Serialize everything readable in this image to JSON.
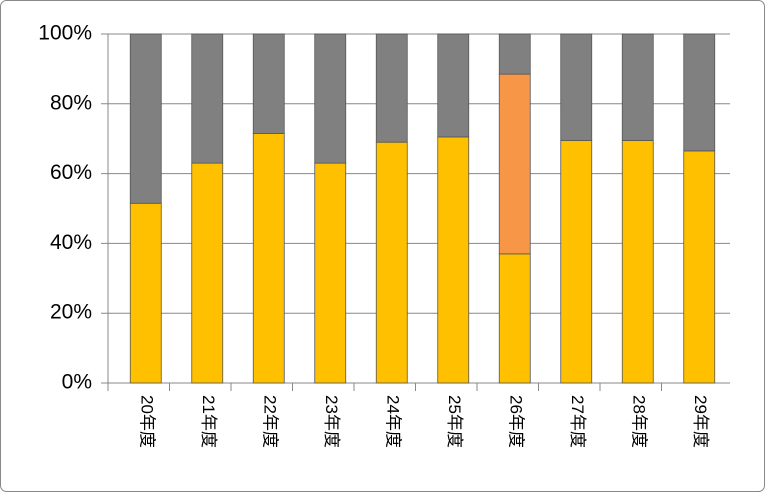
{
  "chart_data": {
    "type": "stacked_bar",
    "categories": [
      "20年度",
      "21年度",
      "22年度",
      "23年度",
      "24年度",
      "25年度",
      "26年度",
      "27年度",
      "28年度",
      "29年度"
    ],
    "series": [
      {
        "color": "#ffc000",
        "values": [
          51.5,
          63,
          71.5,
          63,
          69,
          70.5,
          37,
          69.5,
          69.5,
          66.5
        ]
      },
      {
        "color": "#f79646",
        "values": [
          null,
          null,
          null,
          null,
          null,
          null,
          51.5,
          null,
          null,
          null
        ]
      },
      {
        "color": "#808080",
        "values": [
          48.5,
          37,
          28.5,
          37,
          31,
          29.5,
          11.5,
          30.5,
          30.5,
          33.5
        ]
      }
    ],
    "ylim": [
      0,
      100
    ],
    "yticks": [
      {
        "value": 0,
        "label": "0%"
      },
      {
        "value": 20,
        "label": "20%"
      },
      {
        "value": 40,
        "label": "40%"
      },
      {
        "value": 60,
        "label": "60%"
      },
      {
        "value": 80,
        "label": "80%"
      },
      {
        "value": 100,
        "label": "100%"
      }
    ],
    "grid": true
  }
}
